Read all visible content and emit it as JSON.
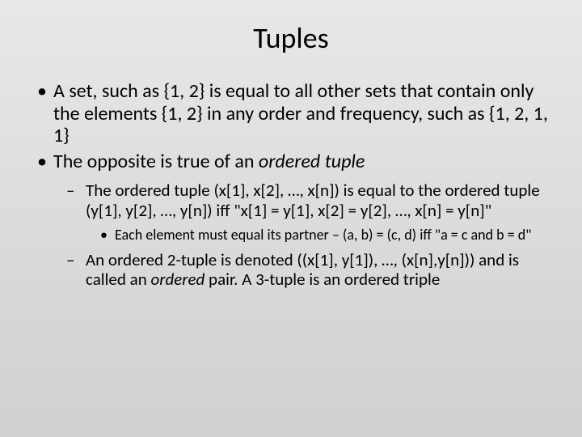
{
  "slide": {
    "title": "Tuples",
    "background_gradient": [
      "#e8e8e8",
      "#dcdcdc",
      "#d0d0d0"
    ],
    "title_fontsize": 36,
    "bullets_level1": [
      {
        "text": "A set, such as {1, 2} is equal to all other sets that contain only the elements {1, 2} in any order and frequency, such as {1, 2, 1, 1}",
        "fontsize": 24
      },
      {
        "prefix": "The opposite is true of an ",
        "italic": "ordered tuple",
        "fontsize": 24
      }
    ],
    "bullets_level2": [
      {
        "text": "The ordered tuple (x[1], x[2], …, x[n]) is equal to the ordered tuple (y[1], y[2], …, y[n]) iff \"x[1] = y[1], x[2] = y[2], …, x[n] = y[n]\"",
        "fontsize": 21
      },
      {
        "prefix": "An ordered 2-tuple is denoted ((x[1], y[1]), …, (x[n],y[n])) and is called an ",
        "italic": "ordered",
        "suffix": " pair. A 3-tuple is an ordered triple",
        "fontsize": 21
      }
    ],
    "bullets_level3": [
      {
        "text": "Each element must equal its partner – (a, b) = (c, d) iff   \"a = c and b = d\"",
        "fontsize": 18
      }
    ]
  }
}
